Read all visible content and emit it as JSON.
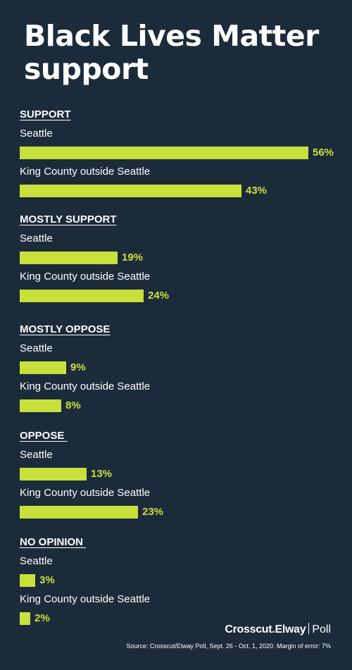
{
  "title": "Black Lives Matter support",
  "colors": {
    "background": "#1c2b3a",
    "bar": "#c8e03c",
    "label": "#ffffff",
    "value": "#c8e03c"
  },
  "chart_data": {
    "type": "bar",
    "orientation": "horizontal",
    "title": "Black Lives Matter support",
    "value_unit": "%",
    "xlim": [
      0,
      56
    ],
    "groups": [
      {
        "heading": "SUPPORT",
        "rows": [
          {
            "label": "Seattle",
            "value": 56,
            "value_label": "56%"
          },
          {
            "label": "King County outside Seattle",
            "value": 43,
            "value_label": "43%"
          }
        ]
      },
      {
        "heading": "MOSTLY SUPPORT",
        "rows": [
          {
            "label": "Seattle",
            "value": 19,
            "value_label": "19%"
          },
          {
            "label": "King County outside Seattle",
            "value": 24,
            "value_label": "24%"
          }
        ]
      },
      {
        "heading": "MOSTLY OPPOSE",
        "rows": [
          {
            "label": "Seattle",
            "value": 9,
            "value_label": "9%"
          },
          {
            "label": "King County outside Seattle",
            "value": 8,
            "value_label": "8%"
          }
        ]
      },
      {
        "heading": "OPPOSE ",
        "rows": [
          {
            "label": "Seattle",
            "value": 13,
            "value_label": "13%"
          },
          {
            "label": "King County outside Seattle",
            "value": 23,
            "value_label": "23%"
          }
        ]
      },
      {
        "heading": "NO OPINION ",
        "rows": [
          {
            "label": "Seattle",
            "value": 3,
            "value_label": "3%"
          },
          {
            "label": "King County outside Seattle",
            "value": 2,
            "value_label": "2%"
          }
        ]
      }
    ]
  },
  "branding": {
    "name": "Crosscut.Elway",
    "suffix": "Poll"
  },
  "source": "Source: Crosscut/Elway Poll, Sept. 26 - Oct. 1, 2020. Margin of error: 7%"
}
